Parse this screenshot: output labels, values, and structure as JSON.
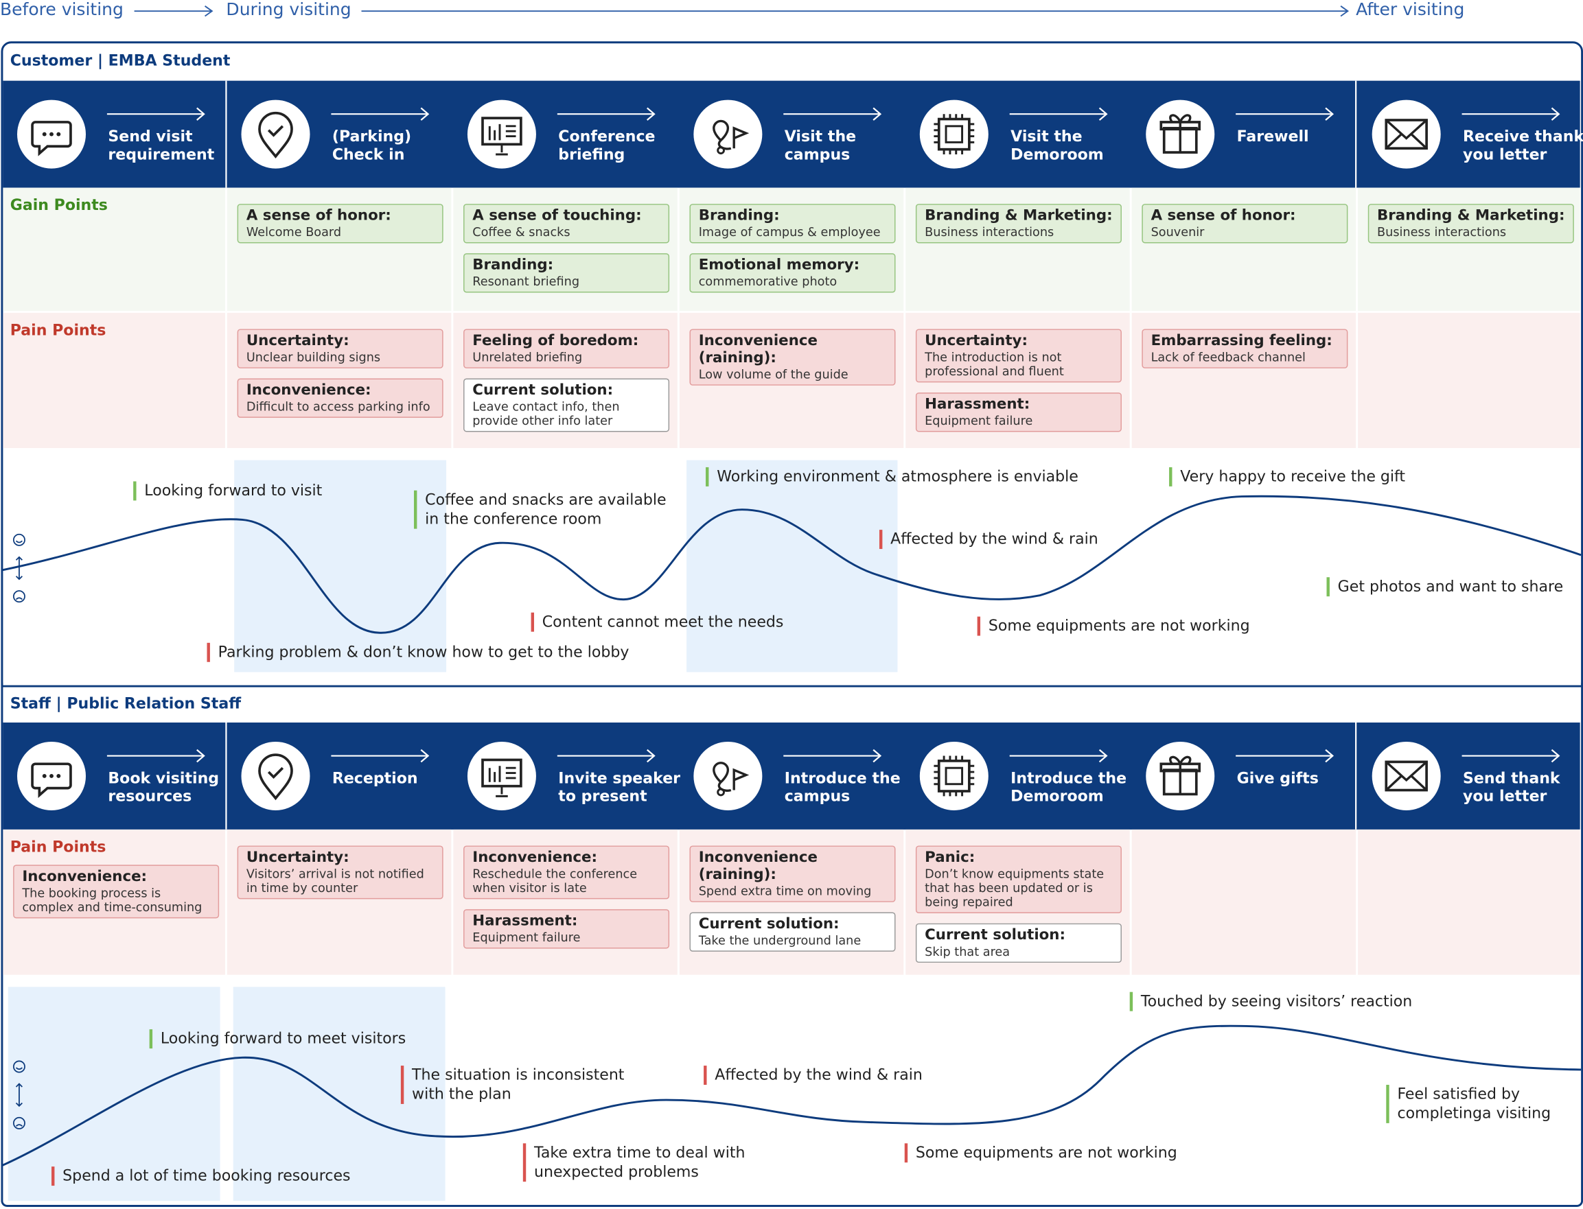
{
  "phases": [
    "Before visiting",
    "During visiting",
    "After visiting"
  ],
  "customer": {
    "title": "Customer | EMBA Student",
    "steps": [
      "Send visit requirement",
      "(Parking) Check in",
      "Conference briefing",
      "Visit the campus",
      "Visit the Demoroom",
      "Farewell",
      "Receive thank you letter"
    ],
    "gain_label": "Gain Points",
    "gains": [
      [],
      [
        {
          "kind": "gain",
          "title": "A sense of honor:",
          "text": "Welcome Board"
        }
      ],
      [
        {
          "kind": "gain",
          "title": "A sense of touching:",
          "text": "Coffee & snacks"
        },
        {
          "kind": "gain",
          "title": "Branding:",
          "text": "Resonant briefing"
        }
      ],
      [
        {
          "kind": "gain",
          "title": "Branding:",
          "text": "Image of campus & employee"
        },
        {
          "kind": "gain",
          "title": "Emotional memory:",
          "text": "commemorative photo"
        }
      ],
      [
        {
          "kind": "gain",
          "title": "Branding & Marketing:",
          "text": "Business interactions"
        }
      ],
      [
        {
          "kind": "gain",
          "title": "A sense of honor:",
          "text": "Souvenir"
        }
      ],
      [
        {
          "kind": "gain",
          "title": "Branding & Marketing:",
          "text": "Business interactions"
        }
      ]
    ],
    "pain_label": "Pain Points",
    "pains": [
      [],
      [
        {
          "kind": "pain",
          "title": "Uncertainty:",
          "text": "Unclear building signs"
        },
        {
          "kind": "pain",
          "title": "Inconvenience:",
          "text": "Difficult to access parking info"
        }
      ],
      [
        {
          "kind": "pain",
          "title": "Feeling of boredom:",
          "text": "Unrelated briefing"
        },
        {
          "kind": "solution",
          "title": "Current solution:",
          "text": "Leave contact info, then provide other info later"
        }
      ],
      [
        {
          "kind": "pain",
          "title": "Inconvenience (raining):",
          "text": "Low volume of the guide"
        }
      ],
      [
        {
          "kind": "pain",
          "title": "Uncertainty:",
          "text": "The introduction is not professional and fluent"
        },
        {
          "kind": "pain",
          "title": "Harassment:",
          "text": "Equipment failure"
        }
      ],
      [
        {
          "kind": "pain",
          "title": "Embarrassing feeling:",
          "text": "Lack of feedback channel"
        }
      ],
      []
    ],
    "emotions": [
      {
        "text": "Looking forward to visit",
        "mood": "positive"
      },
      {
        "text": "Coffee and snacks are available in the conference room",
        "mood": "positive"
      },
      {
        "text": "Working environment & atmosphere is enviable",
        "mood": "positive"
      },
      {
        "text": "Very happy to receive the gift",
        "mood": "positive"
      },
      {
        "text": "Affected by the wind & rain",
        "mood": "negative"
      },
      {
        "text": "Get photos and want to share",
        "mood": "positive"
      },
      {
        "text": "Content cannot meet the needs",
        "mood": "negative"
      },
      {
        "text": "Some equipments are not working",
        "mood": "negative"
      },
      {
        "text": "Parking problem & don’t know how to get to the lobby",
        "mood": "negative"
      }
    ]
  },
  "staff": {
    "title": "Staff  | Public Relation Staff",
    "steps": [
      "Book visiting resources",
      "Reception",
      "Invite speaker to present",
      "Introduce the campus",
      "Introduce the Demoroom",
      "Give gifts",
      "Send thank you letter"
    ],
    "pain_label": "Pain Points",
    "pains": [
      [
        {
          "kind": "pain",
          "title": "Inconvenience:",
          "text": "The booking process is complex and time-consuming"
        }
      ],
      [
        {
          "kind": "pain",
          "title": "Uncertainty:",
          "text": "Visitors’ arrival is not notified in time by counter"
        }
      ],
      [
        {
          "kind": "pain",
          "title": "Inconvenience:",
          "text": "Reschedule the conference when visitor is late"
        },
        {
          "kind": "pain",
          "title": "Harassment:",
          "text": "Equipment failure"
        }
      ],
      [
        {
          "kind": "pain",
          "title": "Inconvenience (raining):",
          "text": "Spend extra time on moving"
        },
        {
          "kind": "solution",
          "title": "Current solution:",
          "text": "Take the underground lane"
        }
      ],
      [
        {
          "kind": "pain",
          "title": "Panic:",
          "text": "Don’t know equipments state that has been updated or is being repaired"
        },
        {
          "kind": "solution",
          "title": "Current solution:",
          "text": "Skip that area"
        }
      ],
      [],
      []
    ],
    "emotions": [
      {
        "text": "Touched by seeing visitors’ reaction",
        "mood": "positive"
      },
      {
        "text": "Looking forward to meet visitors",
        "mood": "positive"
      },
      {
        "text": "The situation is inconsistent with the plan",
        "mood": "negative"
      },
      {
        "text": "Affected by the wind & rain",
        "mood": "negative"
      },
      {
        "text": "Feel satisfied by completinga visiting",
        "mood": "positive"
      },
      {
        "text": "Take extra time to deal with unexpected problems",
        "mood": "negative"
      },
      {
        "text": "Some equipments are not working",
        "mood": "negative"
      },
      {
        "text": "Spend a lot of time booking resources",
        "mood": "negative"
      }
    ]
  }
}
